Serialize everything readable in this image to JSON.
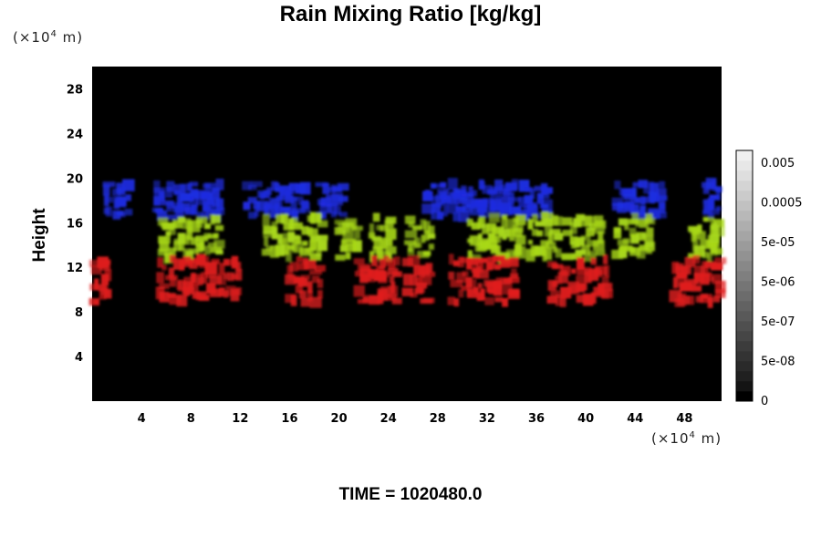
{
  "chart_data": {
    "type": "heatmap",
    "title": "Rain Mixing Ratio [kg/kg]",
    "ylabel": "Height",
    "x_unit_prefix": "(×10",
    "x_unit_exp": "4",
    "x_unit_suffix": " m)",
    "y_unit_prefix": "(×10",
    "y_unit_exp": "4",
    "y_unit_suffix": " m)",
    "xlim": [
      0,
      51
    ],
    "ylim": [
      0,
      30
    ],
    "xticks": [
      4,
      8,
      12,
      16,
      20,
      24,
      28,
      32,
      36,
      40,
      44,
      48
    ],
    "yticks": [
      4,
      8,
      12,
      16,
      20,
      24,
      28
    ],
    "background_color": "#000000",
    "colorbar": {
      "labels": [
        "0.005",
        "0.0005",
        "5e-05",
        "5e-06",
        "5e-07",
        "5e-08",
        "0"
      ],
      "colors": [
        "#000000",
        "#141414",
        "#202020",
        "#2a2a2a",
        "#333333",
        "#3c3c3c",
        "#464646",
        "#4f4f4f",
        "#595959",
        "#626262",
        "#6c6c6c",
        "#757575",
        "#7f7f7f",
        "#888888",
        "#929292",
        "#9b9b9b",
        "#a5a5a5",
        "#aeaeae",
        "#b8b8b8",
        "#c1c1c1",
        "#cbcbcb",
        "#d4d4d4",
        "#dedede",
        "#e7e7e7",
        "#f0f0f0"
      ]
    },
    "layers": [
      {
        "color": "#1f2de0",
        "height_range": [
          16.5,
          19.5
        ],
        "clusters": [
          [
            1,
            3
          ],
          [
            5,
            10.5
          ],
          [
            12.5,
            17.5
          ],
          [
            18.5,
            20.5
          ],
          [
            27,
            34.5
          ],
          [
            35,
            37
          ],
          [
            42.5,
            46.5
          ],
          [
            49.5,
            51
          ]
        ]
      },
      {
        "color": "#a8d81a",
        "height_range": [
          12.8,
          16.5
        ],
        "clusters": [
          [
            5.5,
            10.5
          ],
          [
            14,
            19
          ],
          [
            20,
            21.5
          ],
          [
            22.5,
            24.5
          ],
          [
            25.5,
            27.5
          ],
          [
            30.5,
            35
          ],
          [
            35.5,
            38
          ],
          [
            38.5,
            41.5
          ],
          [
            42.5,
            45.5
          ],
          [
            48.5,
            51
          ]
        ]
      },
      {
        "color": "#e01e1e",
        "height_range": [
          8.8,
          12.8
        ],
        "clusters": [
          [
            0,
            1.5
          ],
          [
            5.5,
            10
          ],
          [
            10.5,
            12
          ],
          [
            16,
            18.5
          ],
          [
            21.5,
            25
          ],
          [
            25.5,
            27.5
          ],
          [
            29,
            34.5
          ],
          [
            37,
            38.5
          ],
          [
            39,
            42
          ],
          [
            47,
            51
          ]
        ]
      }
    ],
    "time_label": "TIME = 1020480.0"
  }
}
